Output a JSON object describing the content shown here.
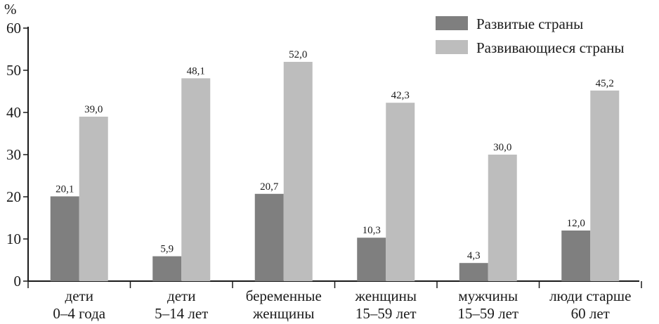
{
  "chart_data": {
    "type": "bar",
    "title": "",
    "xlabel": "",
    "ylabel": "%",
    "ylim": [
      0,
      60
    ],
    "yticks": [
      "0",
      "10",
      "20",
      "30",
      "40",
      "50",
      "60"
    ],
    "grid": false,
    "legend_position": "top-right",
    "categories": [
      [
        "дети",
        "0–4 года"
      ],
      [
        "дети",
        "5–14 лет"
      ],
      [
        "беременные",
        "женщины"
      ],
      [
        "женщины",
        "15–59 лет"
      ],
      [
        "мужчины",
        "15–59 лет"
      ],
      [
        "люди старше",
        "60 лет"
      ]
    ],
    "series": [
      {
        "name": "Развитые страны",
        "color": "#7f7f7f",
        "values": [
          20.1,
          5.9,
          20.7,
          10.3,
          4.3,
          12.0
        ],
        "labels": [
          "20,1",
          "5,9",
          "20,7",
          "10,3",
          "4,3",
          "12,0"
        ]
      },
      {
        "name": "Развивающиеся страны",
        "color": "#bdbdbd",
        "values": [
          39.0,
          48.1,
          52.0,
          42.3,
          30.0,
          45.2
        ],
        "labels": [
          "39,0",
          "48,1",
          "52,0",
          "42,3",
          "30,0",
          "45,2"
        ]
      }
    ]
  }
}
